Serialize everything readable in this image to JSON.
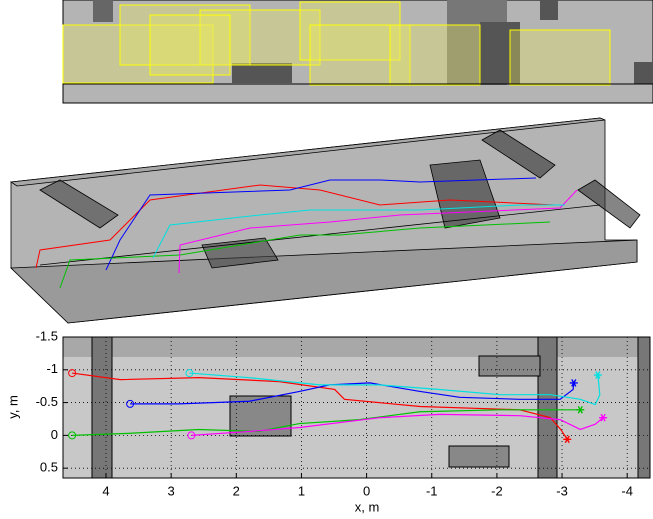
{
  "chart_data": {
    "type": "line",
    "xlabel": "x, m",
    "ylabel": "y, m",
    "xlim": [
      4.66,
      -4.35
    ],
    "ylim": [
      -1.5,
      0.65
    ],
    "xticks": [
      4,
      3,
      2,
      1,
      0,
      -1,
      -2,
      -3,
      -4
    ],
    "yticks": [
      -1.5,
      -1,
      -0.5,
      0,
      0.5
    ],
    "grid": true,
    "series": [
      {
        "color": "#ff0000",
        "x": [
          4.52,
          3.78,
          2.57,
          1.34,
          0.49,
          0.34,
          -0.82,
          -2.35,
          -2.82,
          -2.98,
          -3.08
        ],
        "values": [
          -0.95,
          -0.85,
          -0.88,
          -0.82,
          -0.7,
          -0.55,
          -0.44,
          -0.39,
          -0.27,
          -0.09,
          0.06
        ]
      },
      {
        "color": "#0000ff",
        "x": [
          3.63,
          2.88,
          1.8,
          1.03,
          0.57,
          -0.05,
          -0.82,
          -1.43,
          -2.35,
          -2.97,
          -3.17,
          -3.18
        ],
        "values": [
          -0.48,
          -0.48,
          -0.52,
          -0.67,
          -0.77,
          -0.8,
          -0.67,
          -0.58,
          -0.55,
          -0.55,
          -0.7,
          -0.8
        ]
      },
      {
        "color": "#00c000",
        "x": [
          4.52,
          3.66,
          2.58,
          1.66,
          1.03,
          0.11,
          -0.82,
          -2.05,
          -2.97,
          -3.28
        ],
        "values": [
          0,
          -0.03,
          -0.09,
          -0.06,
          -0.18,
          -0.24,
          -0.36,
          -0.39,
          -0.39,
          -0.39
        ]
      },
      {
        "color": "#ff00ff",
        "x": [
          2.69,
          1.8,
          1.03,
          -0.2,
          -1.12,
          -2.35,
          -2.97,
          -3.28,
          -3.51,
          -3.63
        ],
        "values": [
          0,
          -0.06,
          -0.12,
          -0.27,
          -0.32,
          -0.3,
          -0.24,
          -0.09,
          -0.17,
          -0.27
        ]
      },
      {
        "color": "#00e0e0",
        "x": [
          2.72,
          1.8,
          0.72,
          -0.2,
          -1.12,
          -2.05,
          -2.82,
          -3.28,
          -3.51,
          -3.58,
          -3.55
        ],
        "values": [
          -0.95,
          -0.88,
          -0.77,
          -0.77,
          -0.7,
          -0.62,
          -0.62,
          -0.55,
          -0.47,
          -0.62,
          -0.92
        ]
      }
    ]
  }
}
